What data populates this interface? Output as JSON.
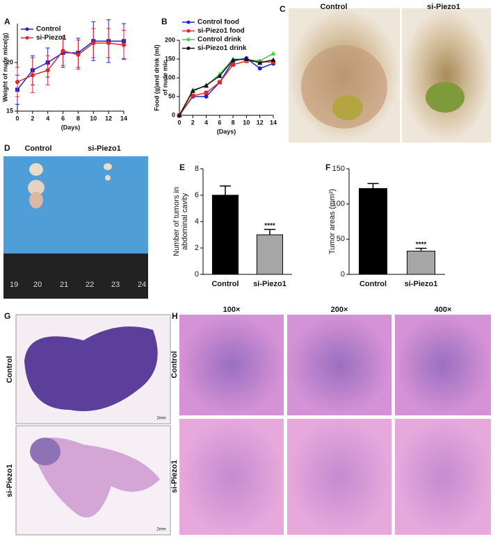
{
  "panels": {
    "A": "A",
    "B": "B",
    "C": "C",
    "D": "D",
    "E": "E",
    "F": "F",
    "G": "G",
    "H": "H"
  },
  "photos": {
    "c_control": "Control",
    "c_si": "si-Piezo1",
    "d_control": "Control",
    "d_si": "si-Piezo1",
    "ruler": [
      "19",
      "20",
      "21",
      "22",
      "23",
      "24"
    ],
    "g_control": "Control",
    "g_si": "si-Piezo1",
    "g_scale": "2mm",
    "h_mag": [
      "100×",
      "200×",
      "400×"
    ],
    "h_control": "Control",
    "h_si": "si-Piezo1"
  },
  "chart_data": [
    {
      "type": "line",
      "ylabel": [
        "Weight of nude mice(g)"
      ],
      "xlabel": "(Days)",
      "x": [
        0,
        2,
        4,
        6,
        8,
        10,
        12,
        14
      ],
      "xlim": [
        0,
        14
      ],
      "xticks": [
        0,
        2,
        4,
        6,
        8,
        10,
        12,
        14
      ],
      "ylim": [
        15,
        24
      ],
      "yticks": [
        15,
        20
      ],
      "legend": "upper left",
      "series": [
        {
          "name": "Control",
          "color": "#1f1fd6",
          "marker": "square",
          "values": [
            17.2,
            19.2,
            20,
            21,
            21,
            22.2,
            22.2,
            22.2
          ],
          "errors": [
            1.5,
            1.5,
            1.5,
            1.5,
            1.5,
            2,
            2.2,
            1.8
          ]
        },
        {
          "name": "si-Piezo1",
          "color": "#e0242a",
          "marker": "circle",
          "values": [
            18,
            18.7,
            19.2,
            21.2,
            20.8,
            22,
            22,
            21.8
          ],
          "errors": [
            1.5,
            1.8,
            1.5,
            1.5,
            1.5,
            1.5,
            1.5,
            1.5
          ]
        }
      ]
    },
    {
      "type": "line",
      "ylabel": [
        "Food (g)and drink (ml)",
        "of nude mic"
      ],
      "xlabel": "(Days)",
      "x": [
        0,
        2,
        4,
        6,
        8,
        10,
        12,
        14
      ],
      "xlim": [
        0,
        14
      ],
      "xticks": [
        0,
        2,
        4,
        6,
        8,
        10,
        12,
        14
      ],
      "ylim": [
        0,
        200
      ],
      "yticks": [
        0,
        50,
        100,
        150,
        200
      ],
      "legend": "upper left",
      "series": [
        {
          "name": "Control food",
          "color": "#1f1fd6",
          "marker": "circle",
          "values": [
            0,
            50,
            50,
            88,
            145,
            152,
            125,
            138
          ]
        },
        {
          "name": "si-Piezo1 food",
          "color": "#e0242a",
          "marker": "square",
          "values": [
            0,
            52,
            60,
            88,
            135,
            145,
            143,
            142
          ]
        },
        {
          "name": "Control drink",
          "color": "#3fd13f",
          "marker": "triangle",
          "values": [
            0,
            68,
            78,
            110,
            150,
            148,
            145,
            165
          ]
        },
        {
          "name": "si-Piezo1 drink",
          "color": "#111111",
          "marker": "triangle",
          "values": [
            0,
            65,
            80,
            105,
            148,
            150,
            140,
            148
          ]
        }
      ]
    },
    {
      "type": "bar",
      "ylabel": [
        "Number of tumors in",
        "abdominal cavity"
      ],
      "categories": [
        "Control",
        "si-Piezo1"
      ],
      "values": [
        6,
        3
      ],
      "errors": [
        0.7,
        0.4
      ],
      "colors": [
        "#000000",
        "#a6a6a6"
      ],
      "ylim": [
        0,
        8
      ],
      "yticks": [
        0,
        2,
        4,
        6,
        8
      ],
      "annotation": "****"
    },
    {
      "type": "bar",
      "ylabel": [
        "Tumor areas (mm²)"
      ],
      "categories": [
        "Control",
        "si-Piezo1"
      ],
      "values": [
        122,
        33
      ],
      "errors": [
        7,
        4
      ],
      "colors": [
        "#000000",
        "#a6a6a6"
      ],
      "ylim": [
        0,
        150
      ],
      "yticks": [
        0,
        50,
        100,
        150
      ],
      "annotation": "****"
    }
  ]
}
